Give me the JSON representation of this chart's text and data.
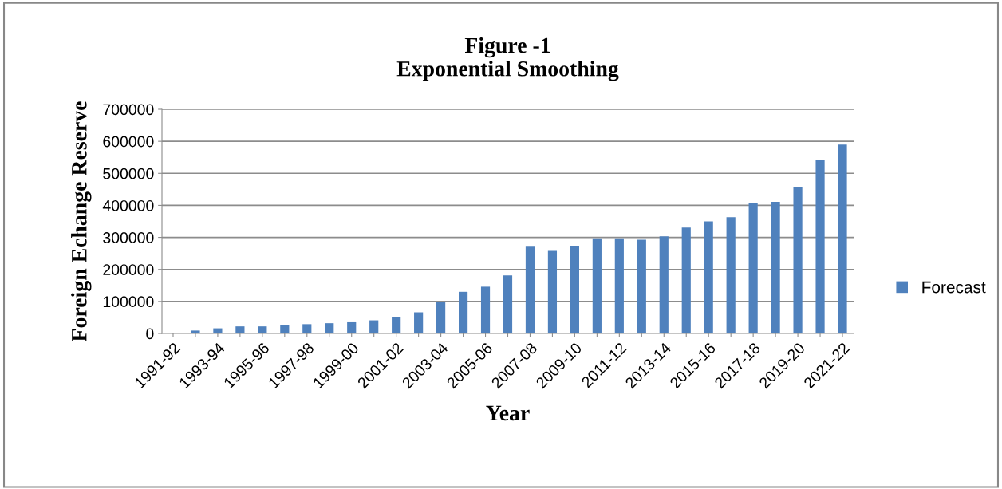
{
  "chart_data": {
    "type": "bar",
    "title": "Figure -1\nExponential Smoothing",
    "xlabel": "Year",
    "ylabel": "Foreign Echange Reserve",
    "categories": [
      "1991-92",
      null,
      "1993-94",
      null,
      "1995-96",
      null,
      "1997-98",
      null,
      "1999-00",
      null,
      "2001-02",
      null,
      "2003-04",
      null,
      "2005-06",
      null,
      "2007-08",
      null,
      "2009-10",
      null,
      "2011-12",
      null,
      "2013-14",
      null,
      "2015-16",
      null,
      "2017-18",
      null,
      "2019-20",
      null,
      "2021-22"
    ],
    "series": [
      {
        "name": "Forecast",
        "color": "#4f81bd",
        "values": [
          null,
          9000,
          16000,
          22000,
          22000,
          26000,
          29000,
          32000,
          35000,
          41000,
          51000,
          66000,
          98000,
          130000,
          146000,
          181000,
          271000,
          258000,
          274000,
          297000,
          297000,
          293000,
          303000,
          331000,
          350000,
          363000,
          408000,
          411000,
          458000,
          541000,
          590000
        ]
      }
    ],
    "ylim": [
      0,
      700000
    ],
    "yticks": [
      0,
      100000,
      200000,
      300000,
      400000,
      500000,
      600000,
      700000
    ],
    "grid": "y",
    "legend": "right"
  }
}
